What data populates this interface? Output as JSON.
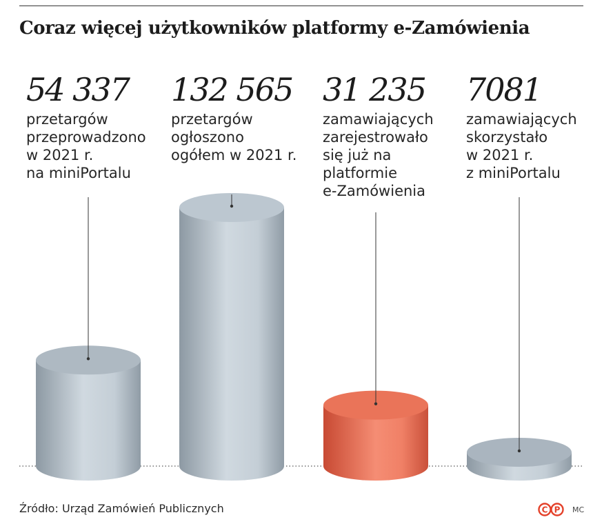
{
  "chart_data": {
    "type": "bar",
    "title": "Coraz więcej użytkowników platformy e-Zamówienia",
    "categories": [
      "przetargów\nprzeprowadzono\nw 2021 r.\nna miniPortalu",
      "przetargów\nogłoszono\nogółem w 2021 r.",
      "zamawiających\nzarejestrowało\nsię już na\nplatformie\ne-Zamówienia",
      "zamawiających\nskorzystało\nw 2021 r.\nz miniPortalu"
    ],
    "values": [
      54337,
      132565,
      31235,
      7081
    ],
    "value_labels": [
      "54 337",
      "132 565",
      "31 235",
      "7081"
    ],
    "xlabel": "",
    "ylabel": "",
    "grid": false,
    "legend": "none"
  },
  "colors": {
    "bar_gray": "#b4c0c9",
    "bar_highlight": "#e8684e",
    "baseline": "#555555",
    "leader_line": "#333333"
  },
  "footer": {
    "source": "Źródło: Urząd Zamówień Publicznych",
    "logo_text": "©P",
    "author": "MC"
  }
}
